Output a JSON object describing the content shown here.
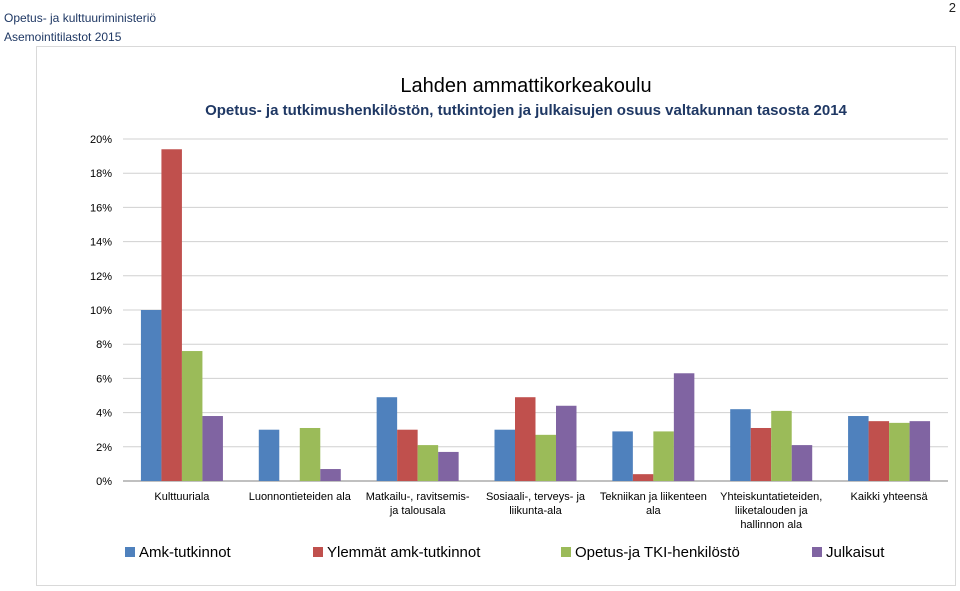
{
  "header": {
    "organization": "Opetus- ja kulttuuriministeriö",
    "subtitle": "Asemointitilastot 2015",
    "page_number": "2"
  },
  "chart_data": {
    "type": "bar",
    "title": "Lahden ammattikorkeakoulu",
    "subtitle": "Opetus- ja tutkimushenkilöstön, tutkintojen ja julkaisujen osuus valtakunnan tasosta 2014",
    "xlabel": "",
    "ylabel": "",
    "ylim": [
      0,
      20
    ],
    "yticks": [
      "0%",
      "2%",
      "4%",
      "6%",
      "8%",
      "10%",
      "12%",
      "14%",
      "16%",
      "18%",
      "20%"
    ],
    "grid": true,
    "legend_position": "bottom",
    "categories": [
      [
        "Kulttuuriala"
      ],
      [
        "Luonnontieteiden ala"
      ],
      [
        "Matkailu-, ravitsemis-",
        "ja talousala"
      ],
      [
        "Sosiaali-, terveys- ja",
        "liikunta-ala"
      ],
      [
        "Tekniikan ja liikenteen",
        "ala"
      ],
      [
        "Yhteiskuntatieteiden,",
        "liiketalouden ja",
        "hallinnon ala"
      ],
      [
        "Kaikki yhteensä"
      ]
    ],
    "series": [
      {
        "name": "Amk-tutkinnot",
        "color": "#4f81bd",
        "values": [
          10.0,
          3.0,
          4.9,
          3.0,
          2.9,
          4.2,
          3.8
        ]
      },
      {
        "name": "Ylemmät amk-tutkinnot",
        "color": "#c0504d",
        "values": [
          19.4,
          0,
          3.0,
          4.9,
          0.4,
          3.1,
          3.5
        ]
      },
      {
        "name": "Opetus-ja TKI-henkilöstö",
        "color": "#9bbb59",
        "values": [
          7.6,
          3.1,
          2.1,
          2.7,
          2.9,
          4.1,
          3.4
        ]
      },
      {
        "name": "Julkaisut",
        "color": "#8064a2",
        "values": [
          3.8,
          0.7,
          1.7,
          4.4,
          6.3,
          2.1,
          3.5
        ]
      }
    ]
  }
}
